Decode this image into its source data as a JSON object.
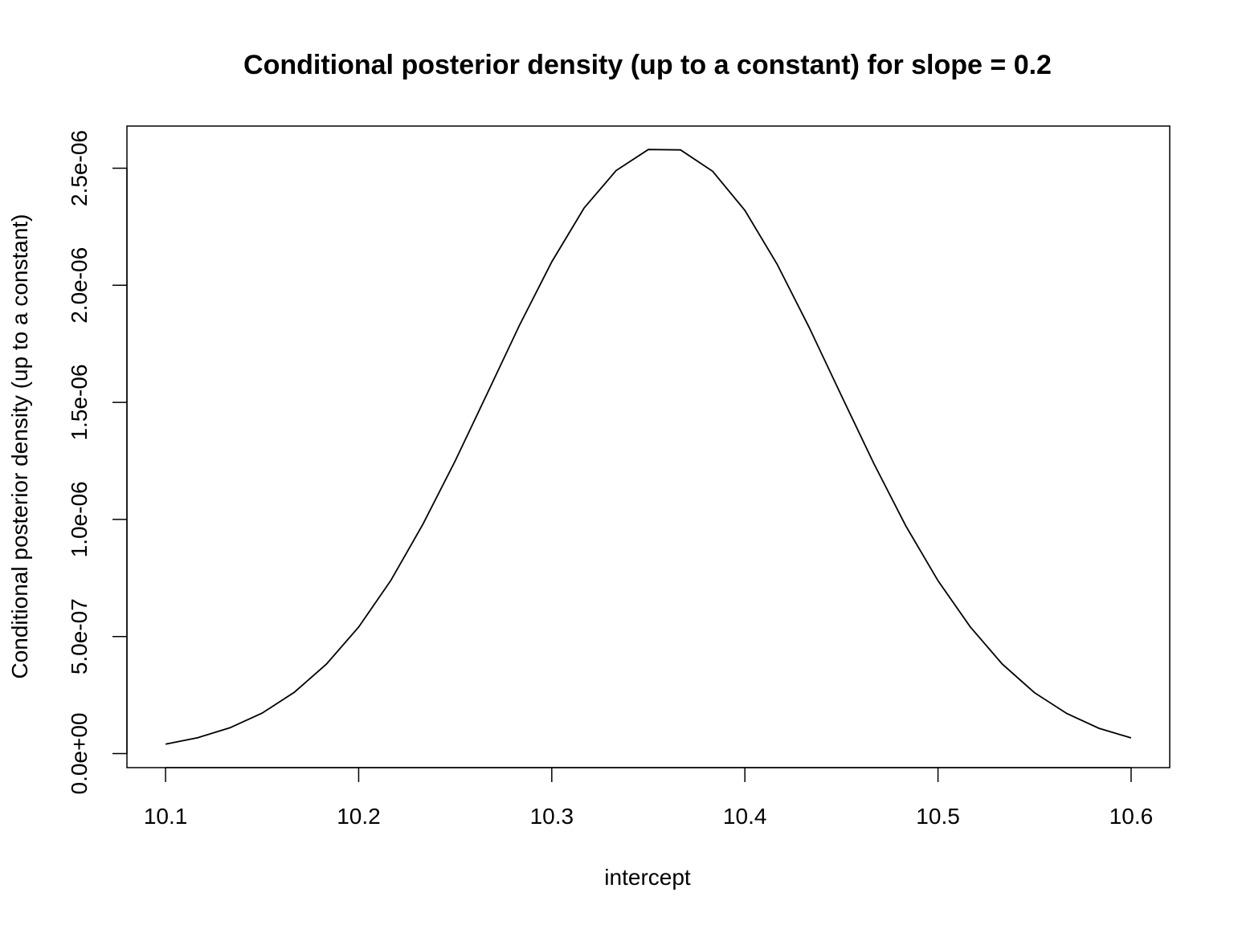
{
  "chart_data": {
    "type": "line",
    "title": "Conditional posterior density (up to a constant) for slope = 0.2",
    "xlabel": "intercept",
    "ylabel": "Conditional posterior density (up to a constant)",
    "xlim": [
      10.08,
      10.62
    ],
    "ylim": [
      -6e-08,
      2.68e-06
    ],
    "x_ticks": [
      10.1,
      10.2,
      10.3,
      10.4,
      10.5,
      10.6
    ],
    "x_tick_labels": [
      "10.1",
      "10.2",
      "10.3",
      "10.4",
      "10.5",
      "10.6"
    ],
    "y_ticks": [
      0,
      5e-07,
      1e-06,
      1.5e-06,
      2e-06,
      2.5e-06
    ],
    "y_tick_labels": [
      "0.0e+00",
      "5.0e-07",
      "1.0e-06",
      "1.5e-06",
      "2.0e-06",
      "2.5e-06"
    ],
    "grid": false,
    "legend": false,
    "line_color": "#000000",
    "series": [
      {
        "x": [
          10.1,
          10.1167,
          10.1333,
          10.15,
          10.1667,
          10.1833,
          10.2,
          10.2167,
          10.2333,
          10.25,
          10.2667,
          10.2833,
          10.3,
          10.3167,
          10.3333,
          10.35,
          10.3667,
          10.3833,
          10.4,
          10.4167,
          10.4333,
          10.45,
          10.4667,
          10.4833,
          10.5,
          10.5167,
          10.5333,
          10.55,
          10.5667,
          10.5833,
          10.6
        ],
        "y": [
          4e-08,
          6.8e-08,
          1.1e-07,
          1.73e-07,
          2.62e-07,
          3.82e-07,
          5.4e-07,
          7.4e-07,
          9.8e-07,
          1.25e-06,
          1.54e-06,
          1.83e-06,
          2.1e-06,
          2.33e-06,
          2.49e-06,
          2.58e-06,
          2.578e-06,
          2.487e-06,
          2.32e-06,
          2.09e-06,
          1.82e-06,
          1.528e-06,
          1.24e-06,
          9.73e-07,
          7.38e-07,
          5.41e-07,
          3.82e-07,
          2.6e-07,
          1.71e-07,
          1.08e-07,
          6.7e-08
        ]
      }
    ]
  }
}
